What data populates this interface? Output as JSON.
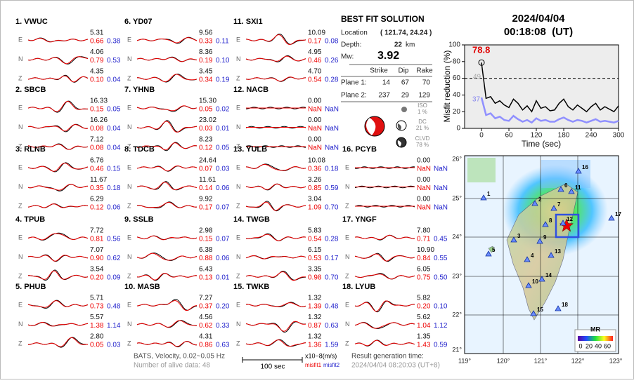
{
  "header": {
    "date": "2024/04/04",
    "time": "00:18:08  (UT)"
  },
  "stations": [
    {
      "name": "1. VWUC",
      "components": [
        {
          "label": "E",
          "amplitude": "5.31",
          "misfit1": "0.66",
          "misfit2": "0.38"
        },
        {
          "label": "N",
          "amplitude": "4.06",
          "misfit1": "0.79",
          "misfit2": "0.53"
        },
        {
          "label": "Z",
          "amplitude": "4.35",
          "misfit1": "0.10",
          "misfit2": "0.04"
        }
      ]
    },
    {
      "name": "2. SBCB",
      "components": [
        {
          "label": "E",
          "amplitude": "16.33",
          "misfit1": "0.15",
          "misfit2": "0.05"
        },
        {
          "label": "N",
          "amplitude": "16.26",
          "misfit1": "0.08",
          "misfit2": "0.04"
        },
        {
          "label": "Z",
          "amplitude": "7.12",
          "misfit1": "0.08",
          "misfit2": "0.04"
        }
      ]
    },
    {
      "name": "3. RLNB",
      "components": [
        {
          "label": "E",
          "amplitude": "6.76",
          "misfit1": "0.46",
          "misfit2": "0.15"
        },
        {
          "label": "N",
          "amplitude": "11.67",
          "misfit1": "0.35",
          "misfit2": "0.18"
        },
        {
          "label": "Z",
          "amplitude": "6.29",
          "misfit1": "0.12",
          "misfit2": "0.06"
        }
      ]
    },
    {
      "name": "4. TPUB",
      "components": [
        {
          "label": "E",
          "amplitude": "7.72",
          "misfit1": "0.81",
          "misfit2": "0.56"
        },
        {
          "label": "N",
          "amplitude": "7.07",
          "misfit1": "0.90",
          "misfit2": "0.62"
        },
        {
          "label": "Z",
          "amplitude": "3.54",
          "misfit1": "0.20",
          "misfit2": "0.09"
        }
      ]
    },
    {
      "name": "5. PHUB",
      "components": [
        {
          "label": "E",
          "amplitude": "5.71",
          "misfit1": "0.73",
          "misfit2": "0.48"
        },
        {
          "label": "N",
          "amplitude": "5.57",
          "misfit1": "1.38",
          "misfit2": "1.14"
        },
        {
          "label": "Z",
          "amplitude": "2.80",
          "misfit1": "0.05",
          "misfit2": "0.03"
        }
      ]
    },
    {
      "name": "6. YD07",
      "components": [
        {
          "label": "E",
          "amplitude": "9.56",
          "misfit1": "0.33",
          "misfit2": "0.11"
        },
        {
          "label": "N",
          "amplitude": "8.36",
          "misfit1": "0.19",
          "misfit2": "0.10"
        },
        {
          "label": "Z",
          "amplitude": "3.45",
          "misfit1": "0.34",
          "misfit2": "0.19"
        }
      ]
    },
    {
      "name": "7. YHNB",
      "components": [
        {
          "label": "E",
          "amplitude": "15.30",
          "misfit1": "0.05",
          "misfit2": "0.02"
        },
        {
          "label": "N",
          "amplitude": "23.02",
          "misfit1": "0.03",
          "misfit2": "0.01"
        },
        {
          "label": "Z",
          "amplitude": "8.23",
          "misfit1": "0.12",
          "misfit2": "0.05"
        }
      ]
    },
    {
      "name": "8. TDCB",
      "components": [
        {
          "label": "E",
          "amplitude": "24.64",
          "misfit1": "0.07",
          "misfit2": "0.03"
        },
        {
          "label": "N",
          "amplitude": "11.61",
          "misfit1": "0.14",
          "misfit2": "0.06"
        },
        {
          "label": "Z",
          "amplitude": "9.92",
          "misfit1": "0.17",
          "misfit2": "0.07"
        }
      ]
    },
    {
      "name": "9. SSLB",
      "components": [
        {
          "label": "E",
          "amplitude": "2.98",
          "misfit1": "0.15",
          "misfit2": "0.07"
        },
        {
          "label": "N",
          "amplitude": "6.38",
          "misfit1": "0.88",
          "misfit2": "0.06"
        },
        {
          "label": "Z",
          "amplitude": "6.43",
          "misfit1": "0.13",
          "misfit2": "0.01"
        }
      ]
    },
    {
      "name": "10. MASB",
      "components": [
        {
          "label": "E",
          "amplitude": "7.27",
          "misfit1": "0.37",
          "misfit2": "0.20"
        },
        {
          "label": "N",
          "amplitude": "4.56",
          "misfit1": "0.62",
          "misfit2": "0.33"
        },
        {
          "label": "Z",
          "amplitude": "4.31",
          "misfit1": "0.86",
          "misfit2": "0.63"
        }
      ]
    },
    {
      "name": "11. SXI1",
      "components": [
        {
          "label": "E",
          "amplitude": "10.09",
          "misfit1": "0.17",
          "misfit2": "0.08"
        },
        {
          "label": "N",
          "amplitude": "4.95",
          "misfit1": "0.46",
          "misfit2": "0.26"
        },
        {
          "label": "Z",
          "amplitude": "4.70",
          "misfit1": "0.54",
          "misfit2": "0.28"
        }
      ]
    },
    {
      "name": "12. NACB",
      "components": [
        {
          "label": "E",
          "amplitude": "0.00",
          "misfit1": "NaN",
          "misfit2": "NaN"
        },
        {
          "label": "N",
          "amplitude": "0.00",
          "misfit1": "NaN",
          "misfit2": "NaN"
        },
        {
          "label": "Z",
          "amplitude": "0.00",
          "misfit1": "NaN",
          "misfit2": "NaN"
        }
      ]
    },
    {
      "name": "13. YULB",
      "components": [
        {
          "label": "E",
          "amplitude": "10.08",
          "misfit1": "0.36",
          "misfit2": "0.18"
        },
        {
          "label": "N",
          "amplitude": "3.26",
          "misfit1": "0.85",
          "misfit2": "0.59"
        },
        {
          "label": "Z",
          "amplitude": "3.04",
          "misfit1": "1.09",
          "misfit2": "0.70"
        }
      ]
    },
    {
      "name": "14. TWGB",
      "components": [
        {
          "label": "E",
          "amplitude": "5.83",
          "misfit1": "0.54",
          "misfit2": "0.28"
        },
        {
          "label": "N",
          "amplitude": "6.15",
          "misfit1": "0.53",
          "misfit2": "0.17"
        },
        {
          "label": "Z",
          "amplitude": "3.35",
          "misfit1": "0.98",
          "misfit2": "0.70"
        }
      ]
    },
    {
      "name": "15. TWKB",
      "components": [
        {
          "label": "E",
          "amplitude": "1.32",
          "misfit1": "1.39",
          "misfit2": "0.48"
        },
        {
          "label": "N",
          "amplitude": "1.32",
          "misfit1": "0.87",
          "misfit2": "0.63"
        },
        {
          "label": "Z",
          "amplitude": "1.32",
          "misfit1": "1.36",
          "misfit2": "1.59"
        }
      ]
    },
    {
      "name": "16. PCYB",
      "components": [
        {
          "label": "E",
          "amplitude": "0.00",
          "misfit1": "NaN",
          "misfit2": "NaN"
        },
        {
          "label": "N",
          "amplitude": "0.00",
          "misfit1": "NaN",
          "misfit2": "NaN"
        },
        {
          "label": "Z",
          "amplitude": "0.00",
          "misfit1": "NaN",
          "misfit2": "NaN"
        }
      ]
    },
    {
      "name": "17. YNGF",
      "components": [
        {
          "label": "E",
          "amplitude": "7.80",
          "misfit1": "0.71",
          "misfit2": "0.45"
        },
        {
          "label": "N",
          "amplitude": "10.90",
          "misfit1": "0.84",
          "misfit2": "0.55"
        },
        {
          "label": "Z",
          "amplitude": "6.05",
          "misfit1": "0.75",
          "misfit2": "0.50"
        }
      ]
    },
    {
      "name": "18. LYUB",
      "components": [
        {
          "label": "E",
          "amplitude": "5.82",
          "misfit1": "0.20",
          "misfit2": "0.10"
        },
        {
          "label": "N",
          "amplitude": "5.62",
          "misfit1": "1.04",
          "misfit2": "1.12"
        },
        {
          "label": "Z",
          "amplitude": "1.35",
          "misfit1": "1.43",
          "misfit2": "0.59"
        }
      ]
    }
  ],
  "solution": {
    "title": "BEST FIT SOLUTION",
    "location_label": "Location",
    "location": "( 121.74, 24.24 )",
    "depth_label": "Depth:",
    "depth": "22",
    "depth_unit": "km",
    "mw_label": "Mw:",
    "mw": "3.92",
    "columns": [
      "Strike",
      "Dip",
      "Rake"
    ],
    "planes": [
      {
        "label": "Plane 1:",
        "values": [
          "14",
          "67",
          "70"
        ]
      },
      {
        "label": "Plane 2:",
        "values": [
          "237",
          "29",
          "129"
        ]
      }
    ],
    "components": [
      {
        "label": "ISO",
        "percent": "1 %"
      },
      {
        "label": "DC",
        "percent": "21 %"
      },
      {
        "label": "CLVD",
        "percent": "78 %"
      }
    ]
  },
  "misfit_chart": {
    "type": "line",
    "ylabel": "Misfit reduction (%)",
    "xlabel": "Time (sec)",
    "xlim": [
      -37,
      300
    ],
    "ylim": [
      0,
      100
    ],
    "xticks": [
      0,
      60,
      120,
      180,
      240,
      300
    ],
    "yticks": [
      0,
      20,
      40,
      60,
      80,
      100
    ],
    "reference_line": 60,
    "annotations": [
      {
        "text": "78.8",
        "color": "#e00000"
      },
      {
        "text": "49",
        "color": "#aaaaaa"
      },
      {
        "text": "37",
        "color": "#8888ee"
      }
    ],
    "x": [
      0,
      10,
      20,
      30,
      40,
      50,
      60,
      70,
      80,
      90,
      100,
      110,
      120,
      130,
      140,
      150,
      160,
      170,
      180,
      190,
      200,
      210,
      220,
      230,
      240,
      250,
      260,
      270,
      280,
      290,
      300
    ],
    "series": [
      {
        "color": "#000000",
        "values": [
          78.8,
          36,
          38,
          30,
          33,
          28,
          25,
          35,
          30,
          22,
          27,
          20,
          33,
          24,
          26,
          21,
          22,
          30,
          35,
          26,
          22,
          28,
          24,
          20,
          26,
          30,
          22,
          26,
          23,
          20,
          27
        ]
      },
      {
        "color": "#9090ff",
        "values": [
          37,
          16,
          18,
          12,
          14,
          10,
          9,
          15,
          11,
          8,
          10,
          7,
          12,
          9,
          10,
          8,
          8,
          11,
          13,
          10,
          8,
          10,
          9,
          7,
          9,
          11,
          8,
          9,
          8,
          7,
          9
        ]
      }
    ]
  },
  "map": {
    "lon_labels": [
      "119°",
      "120°",
      "121°",
      "122°",
      "123°"
    ],
    "lat_labels": [
      "26°",
      "25°",
      "24°",
      "23°",
      "22°",
      "21°"
    ],
    "stations": [
      "1",
      "2",
      "3",
      "4",
      "5",
      "6",
      "7",
      "8",
      "9",
      "10",
      "11",
      "12",
      "13",
      "14",
      "15",
      "16",
      "17",
      "18"
    ],
    "colorbar_title": "MR",
    "colorbar_labels": [
      "0",
      "20",
      "40",
      "60"
    ]
  },
  "footer": {
    "filter": "BATS, Velocity, 0.02~0.05 Hz",
    "alive": "Number of alive data: 48",
    "scale": "100 sec",
    "units": "x10−8(m/s)",
    "misfit1": "misfit1",
    "misfit2": "misfit2",
    "result_label": "Result generation time:",
    "result_time": "2024/04/04 08:20:03 (UT+8)"
  }
}
